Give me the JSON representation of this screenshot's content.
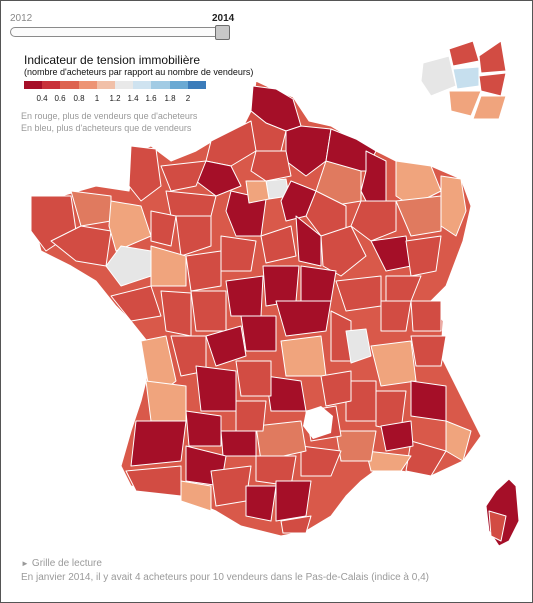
{
  "slider": {
    "start_year": "2012",
    "end_year": "2014",
    "selected_year": "2014"
  },
  "legend": {
    "title": "Indicateur de tension immobilière",
    "subtitle": "(nombre d'acheteurs par rapport au nombre de vendeurs)",
    "scale_colors": [
      "#a50f28",
      "#c8313a",
      "#dd6450",
      "#ed9474",
      "#f1c0a8",
      "#e9e9e9",
      "#cfe3f0",
      "#a2cbe4",
      "#6aa9d3",
      "#3b7cba",
      "#1a4f92",
      "#0c2a5a"
    ],
    "tick_labels": [
      "0.4",
      "0.6",
      "0.8",
      "1",
      "1.2",
      "1.4",
      "1.6",
      "1.8",
      "2"
    ],
    "note_red": "En rouge, plus de vendeurs que d'acheteurs",
    "note_blue": "En bleu, plus d'acheteurs que de vendeurs"
  },
  "map": {
    "region": "France métropolitaine (départements)",
    "inset": "Île-de-France",
    "category_colors": {
      "very_low": "#a50f28",
      "low": "#d24c43",
      "mid_low": "#e07a5f",
      "near_low": "#f0a47d",
      "neutral": "#e6e6e6",
      "above": "#c6dfee"
    }
  },
  "footer": {
    "link_label": "Grille de lecture",
    "reading_text": "En janvier 2014, il y avait 4 acheteurs pour 10 vendeurs dans le Pas-de-Calais (indice à 0,4)"
  }
}
